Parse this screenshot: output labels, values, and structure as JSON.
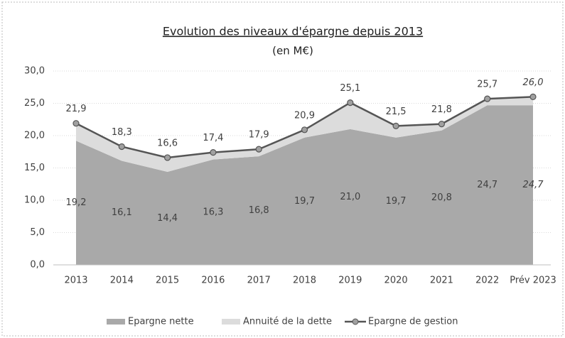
{
  "chart_data": {
    "type": "area",
    "title": "Evolution des niveaux d'épargne depuis 2013",
    "subtitle": "(en M€)",
    "categories": [
      "2013",
      "2014",
      "2015",
      "2016",
      "2017",
      "2018",
      "2019",
      "2020",
      "2021",
      "2022",
      "Prév 2023"
    ],
    "series": [
      {
        "name": "Epargne nette",
        "type": "area",
        "color": "#a9a9a9",
        "values": [
          19.2,
          16.1,
          14.4,
          16.3,
          16.8,
          19.7,
          21.0,
          19.7,
          20.8,
          24.7,
          24.7
        ],
        "value_labels": [
          "19,2",
          "16,1",
          "14,4",
          "16,3",
          "16,8",
          "19,7",
          "21,0",
          "19,7",
          "20,8",
          "24,7",
          "24,7"
        ]
      },
      {
        "name": "Annuité de la dette",
        "type": "area",
        "color": "#dcdcdc",
        "values": [
          2.7,
          2.2,
          2.2,
          1.1,
          1.1,
          1.2,
          4.1,
          1.8,
          1.0,
          1.0,
          1.3
        ]
      },
      {
        "name": "Epargne de gestion",
        "type": "line",
        "color": "#555555",
        "values": [
          21.9,
          18.3,
          16.6,
          17.4,
          17.9,
          20.9,
          25.1,
          21.5,
          21.8,
          25.7,
          26.0
        ],
        "value_labels": [
          "21,9",
          "18,3",
          "16,6",
          "17,4",
          "17,9",
          "20,9",
          "25,1",
          "21,5",
          "21,8",
          "25,7",
          "26,0"
        ]
      }
    ],
    "ylim": [
      0,
      30
    ],
    "yticks": [
      {
        "value": 0,
        "label": "0,0"
      },
      {
        "value": 5,
        "label": "5,0"
      },
      {
        "value": 10,
        "label": "10,0"
      },
      {
        "value": 15,
        "label": "15,0"
      },
      {
        "value": 20,
        "label": "20,0"
      },
      {
        "value": 25,
        "label": "25,0"
      },
      {
        "value": 30,
        "label": "30,0"
      }
    ],
    "grid": true,
    "legend": "bottom"
  }
}
